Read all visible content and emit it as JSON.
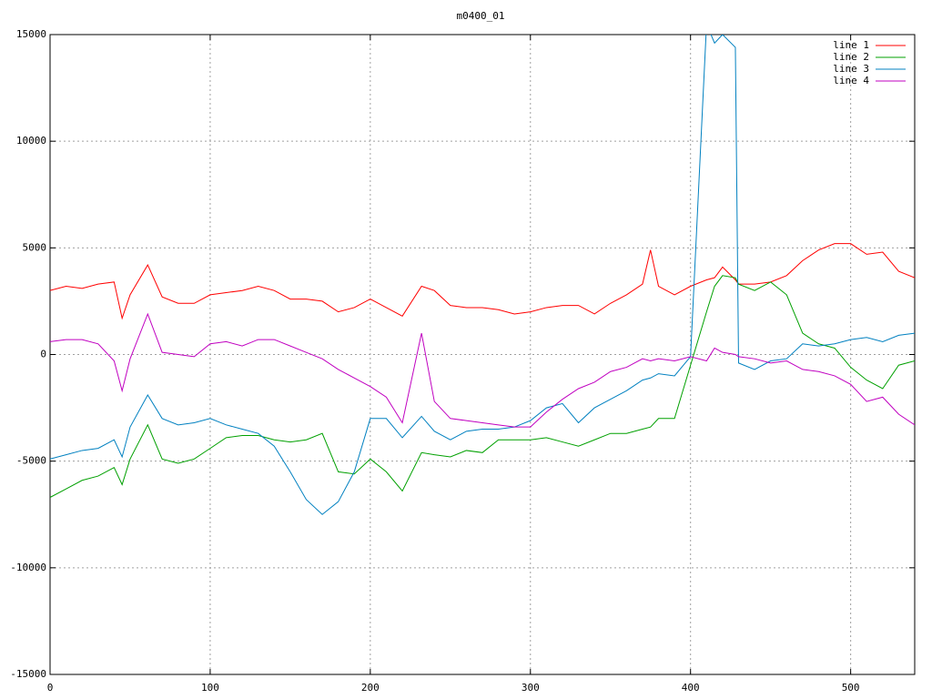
{
  "chart_data": {
    "type": "line",
    "title": "m0400_01",
    "x": [
      0,
      10,
      20,
      30,
      40,
      45,
      50,
      61,
      70,
      80,
      90,
      100,
      110,
      120,
      130,
      140,
      150,
      160,
      170,
      180,
      190,
      200,
      210,
      220,
      232,
      240,
      250,
      260,
      270,
      280,
      290,
      300,
      310,
      320,
      330,
      340,
      350,
      360,
      370,
      375,
      380,
      390,
      400,
      410,
      415,
      420,
      428,
      430,
      440,
      450,
      460,
      470,
      480,
      490,
      500,
      510,
      520,
      530,
      540
    ],
    "series": [
      {
        "name": "line 1",
        "color": "#ff0000",
        "values": [
          3000,
          3200,
          3100,
          3300,
          3400,
          1700,
          2800,
          4200,
          2700,
          2400,
          2400,
          2800,
          2900,
          3000,
          3200,
          3000,
          2600,
          2600,
          2500,
          2000,
          2200,
          2600,
          2200,
          1800,
          3200,
          3000,
          2300,
          2200,
          2200,
          2100,
          1900,
          2000,
          2200,
          2300,
          2300,
          1900,
          2400,
          2800,
          3300,
          4900,
          3200,
          2800,
          3200,
          3500,
          3600,
          4100,
          3500,
          3300,
          3300,
          3400,
          3700,
          4400,
          4900,
          5200,
          5200,
          4700,
          4800,
          3900,
          3600
        ]
      },
      {
        "name": "line 2",
        "color": "#00a000",
        "values": [
          -6700,
          -6300,
          -5900,
          -5700,
          -5300,
          -6100,
          -4900,
          -3300,
          -4900,
          -5100,
          -4900,
          -4400,
          -3900,
          -3800,
          -3800,
          -4000,
          -4100,
          -4000,
          -3700,
          -5500,
          -5600,
          -4900,
          -5500,
          -6400,
          -4600,
          -4700,
          -4800,
          -4500,
          -4600,
          -4000,
          -4000,
          -4000,
          -3900,
          -4100,
          -4300,
          -4000,
          -3700,
          -3700,
          -3500,
          -3400,
          -3000,
          -3000,
          -500,
          2000,
          3200,
          3700,
          3600,
          3300,
          3000,
          3400,
          2800,
          1000,
          500,
          300,
          -600,
          -1200,
          -1600,
          -500,
          -300
        ]
      },
      {
        "name": "line 3",
        "color": "#0080c0",
        "values": [
          -4900,
          -4700,
          -4500,
          -4400,
          -4000,
          -4800,
          -3400,
          -1900,
          -3000,
          -3300,
          -3200,
          -3000,
          -3300,
          -3500,
          -3700,
          -4300,
          -5500,
          -6800,
          -7500,
          -6900,
          -5500,
          -3000,
          -3000,
          -3900,
          -2900,
          -3600,
          -4000,
          -3600,
          -3500,
          -3500,
          -3400,
          -3100,
          -2500,
          -2300,
          -3200,
          -2500,
          -2100,
          -1700,
          -1200,
          -1100,
          -900,
          -1000,
          -100,
          15500,
          14600,
          15000,
          14400,
          -400,
          -700,
          -300,
          -200,
          500,
          400,
          500,
          700,
          800,
          600,
          900,
          1000
        ]
      },
      {
        "name": "line 4",
        "color": "#c000c0",
        "values": [
          600,
          700,
          700,
          500,
          -300,
          -1700,
          -200,
          1900,
          100,
          0,
          -100,
          500,
          600,
          400,
          700,
          700,
          400,
          100,
          -200,
          -700,
          -1100,
          -1500,
          -2000,
          -3200,
          1000,
          -2200,
          -3000,
          -3100,
          -3200,
          -3300,
          -3400,
          -3400,
          -2700,
          -2100,
          -1600,
          -1300,
          -800,
          -600,
          -200,
          -300,
          -200,
          -300,
          -100,
          -300,
          300,
          100,
          0,
          -100,
          -200,
          -400,
          -300,
          -700,
          -800,
          -1000,
          -1400,
          -2200,
          -2000,
          -2800,
          -3300
        ]
      }
    ],
    "xlim": [
      0,
      540
    ],
    "xticks": [
      0,
      100,
      200,
      300,
      400,
      500
    ],
    "ylim": [
      -15000,
      15000
    ],
    "yticks": [
      -15000,
      -10000,
      -5000,
      0,
      5000,
      10000,
      15000
    ],
    "grid": true,
    "legend": "top-right"
  }
}
